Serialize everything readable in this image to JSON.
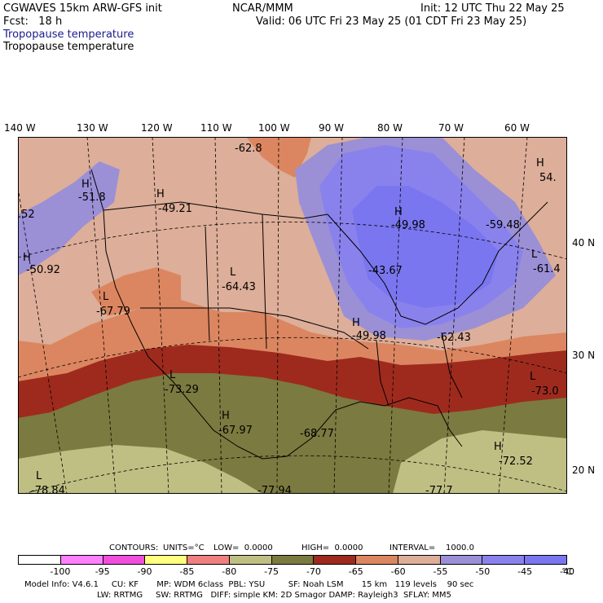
{
  "header": {
    "model": "CGWAVES 15km ARW-GFS init",
    "org": "NCAR/MMM",
    "init": "Init: 12 UTC Thu 22 May 25",
    "fcst": "Fcst:   18 h",
    "valid": "Valid: 06 UTC Fri 23 May 25 (01 CDT Fri 23 May 25)",
    "field_title_1": "Tropopause temperature",
    "field_title_2": "Tropopause temperature"
  },
  "map": {
    "lon_labels": [
      "140 W",
      "130 W",
      "120 W",
      "110 W",
      "100 W",
      "90 W",
      "80 W",
      "70 W",
      "60 W"
    ],
    "lat_labels": [
      "40 N",
      "30 N",
      "20 N"
    ],
    "extrema": [
      {
        "letter": "H",
        "value": "-51.8"
      },
      {
        "letter": "",
        "value": ".52"
      },
      {
        "letter": "H",
        "value": "-50.92"
      },
      {
        "letter": "H",
        "value": "-49.21"
      },
      {
        "letter": "",
        "value": "-62.8"
      },
      {
        "letter": "L",
        "value": "-64.43"
      },
      {
        "letter": "L",
        "value": "-67.79"
      },
      {
        "letter": "L",
        "value": "-73.29"
      },
      {
        "letter": "H",
        "value": "-67.97"
      },
      {
        "letter": "",
        "value": "-68.77"
      },
      {
        "letter": "H",
        "value": "-49.98"
      },
      {
        "letter": "",
        "value": "-43.67"
      },
      {
        "letter": "H",
        "value": "-49.98"
      },
      {
        "letter": "",
        "value": "-62.43"
      },
      {
        "letter": "",
        "value": "-59.48"
      },
      {
        "letter": "H",
        "value": "54."
      },
      {
        "letter": "L",
        "value": "-61.4"
      },
      {
        "letter": "L",
        "value": "-73.0"
      },
      {
        "letter": "H",
        "value": "-72.52"
      },
      {
        "letter": "L",
        "value": "-78.84"
      },
      {
        "letter": "",
        "value": "-77.94"
      },
      {
        "letter": "",
        "value": "-77.7"
      }
    ],
    "colors": {
      "le_-75": "#bfbf84",
      "-75_-70": "#7b7a40",
      "-70_-65": "#9e2a1e",
      "-65_-60": "#db8660",
      "-60_-55": "#ddae99",
      "-55_-50": "#9b90d6",
      "-50_-45": "#8a82ec",
      "-45_-40": "#7a76f0"
    }
  },
  "contour_info": {
    "contours": "CONTOURS:",
    "units": "UNITS=°C",
    "low": "LOW=  0.0000",
    "high": "HIGH=  0.0000",
    "interval": "INTERVAL=    1000.0"
  },
  "colorbar": {
    "colors": [
      "#ffffff",
      "#ff80ff",
      "#ef4fdc",
      "#ffff80",
      "#f08080",
      "#bfbf84",
      "#7b7a40",
      "#9e2a1e",
      "#db8660",
      "#ddae99",
      "#9b90d6",
      "#8a82ec",
      "#7a76f0"
    ],
    "ticks": [
      "-100",
      "-95",
      "-90",
      "-85",
      "-80",
      "-75",
      "-70",
      "-65",
      "-60",
      "-55",
      "-50",
      "-45",
      "-40",
      "°C"
    ]
  },
  "footer": {
    "line1": "Model Info: V4.6.1     CU: KF       MP: WDM 6class  PBL: YSU         SF: Noah LSM       15 km   119 levels    90 sec",
    "line2": "                            LW: RRTMG     SW: RRTMG   DIFF: simple KM: 2D Smagor DAMP: Rayleigh3  SFLAY: MM5"
  }
}
